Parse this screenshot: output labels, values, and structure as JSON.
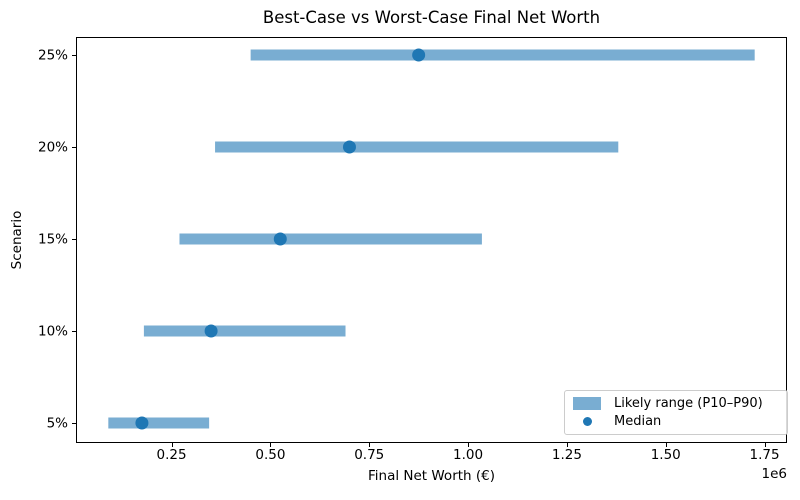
{
  "colors": {
    "bar": "#79ADD2",
    "dot": "#1F77B4",
    "spine": "#000000",
    "text": "#000000",
    "legend_border": "#CCCCCC",
    "background": "#FFFFFF"
  },
  "chart_data": {
    "type": "bar",
    "subtype": "horizontal-range-bar-with-median-scatter",
    "title": "Best-Case vs Worst-Case Final Net Worth",
    "xlabel": "Final Net Worth (€)",
    "ylabel": "Scenario",
    "x_offset_label": "1e6",
    "categories": [
      "5%",
      "10%",
      "15%",
      "20%",
      "25%"
    ],
    "series": [
      {
        "name": "Likely range (P10–P90)",
        "type": "range_bar",
        "p10": [
          90000,
          180000,
          270000,
          360000,
          450000
        ],
        "p90": [
          345000,
          690000,
          1035000,
          1380000,
          1725000
        ]
      },
      {
        "name": "Median",
        "type": "scatter",
        "values": [
          175000,
          350000,
          525000,
          700000,
          875000
        ]
      }
    ],
    "xlim": [
      8250,
      1806750
    ],
    "xticks": [
      250000,
      500000,
      750000,
      1000000,
      1250000,
      1500000,
      1750000
    ],
    "xtick_labels": [
      "0.25",
      "0.50",
      "0.75",
      "1.00",
      "1.25",
      "1.50",
      "1.75"
    ],
    "grid": false,
    "legend": {
      "position": "lower right",
      "items": [
        {
          "label": "Likely range (P10–P90)",
          "marker": "bar"
        },
        {
          "label": "Median",
          "marker": "dot"
        }
      ]
    }
  }
}
